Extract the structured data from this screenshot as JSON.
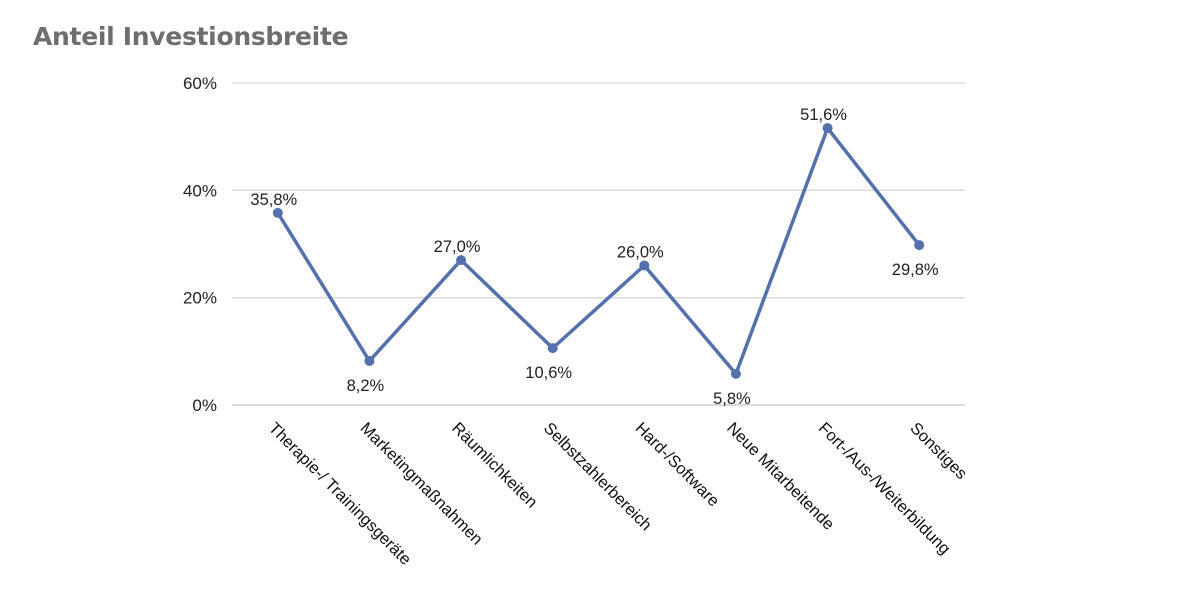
{
  "chart_data": {
    "type": "line",
    "title": "Anteil Investionsbreite",
    "categories": [
      "Therapie-/ Trainingsgeräte",
      "Marketingmaßnahmen",
      "Räumlichkeiten",
      "Selbstzahlerbereich",
      "Hard-/Software",
      "Neue Mitarbeitende",
      "Fort-/Aus-/Weiterbildung",
      "Sonstiges"
    ],
    "values": [
      35.8,
      8.2,
      27.0,
      10.6,
      26.0,
      5.8,
      51.6,
      29.8
    ],
    "data_labels": [
      "35,8%",
      "8,2%",
      "27,0%",
      "10,6%",
      "26,0%",
      "5,8%",
      "51,6%",
      "29,8%"
    ],
    "data_label_position": [
      "above",
      "below",
      "above",
      "below",
      "above",
      "below",
      "above",
      "below"
    ],
    "yticks": [
      0,
      20,
      40,
      60
    ],
    "ytick_labels": [
      "0%",
      "20%",
      "40%",
      "60%"
    ],
    "ylim": [
      0,
      60
    ],
    "xlabel": "",
    "ylabel": "",
    "grid": true,
    "legend": "none",
    "line_color": "#5470ad",
    "grid_color": "#d9d9d9"
  }
}
